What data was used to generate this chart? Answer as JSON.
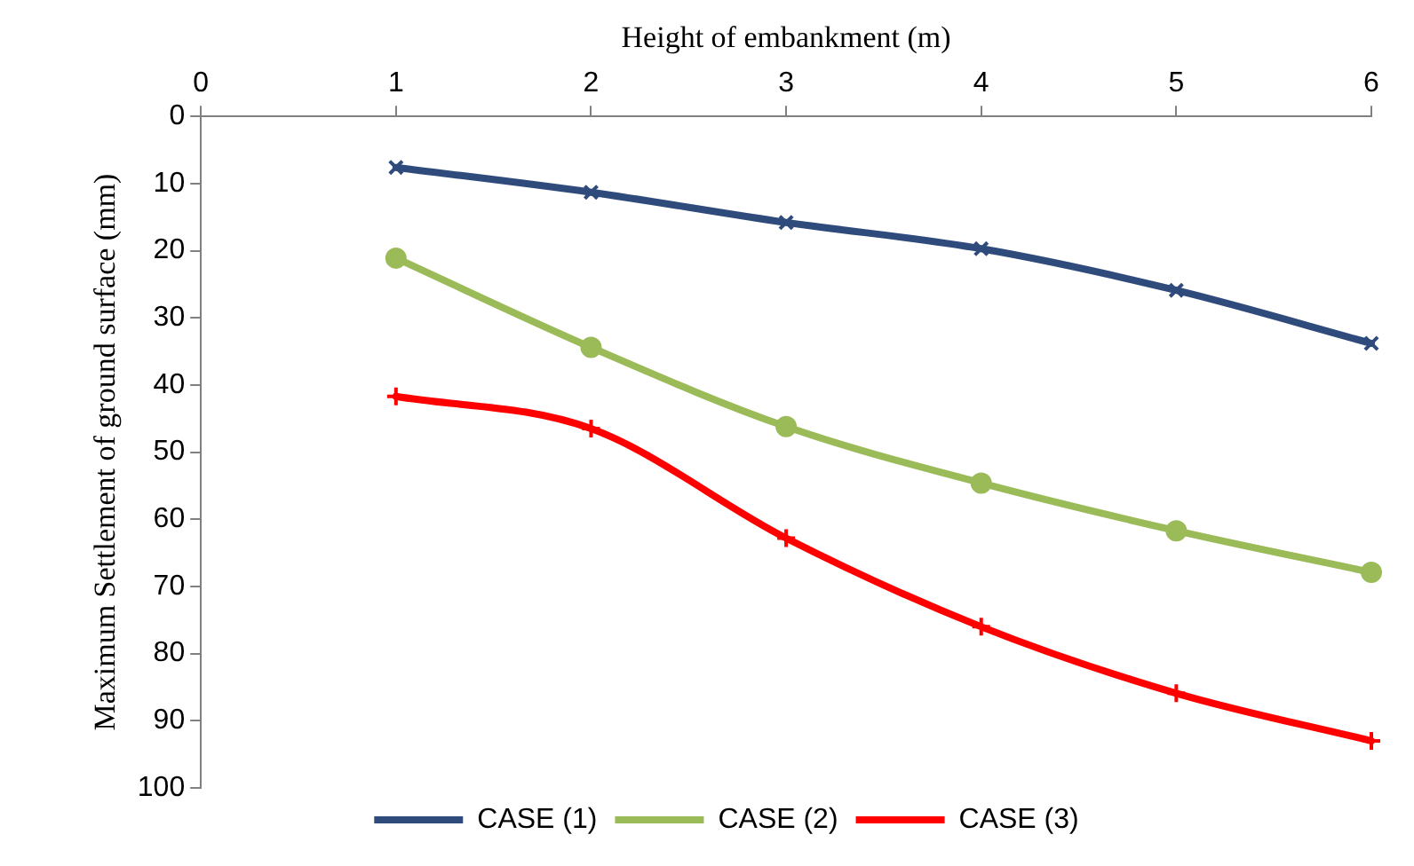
{
  "chart_data": {
    "type": "line",
    "xlabel": "Height of embankment (m)",
    "ylabel": "Maximum Settlement of ground surface (mm)",
    "x": [
      1,
      2,
      3,
      4,
      5,
      6
    ],
    "series": [
      {
        "name": "CASE (1)",
        "color": "#2f4b7c",
        "marker": "cross",
        "values": [
          7.6,
          11.3,
          15.8,
          19.7,
          25.9,
          33.8
        ]
      },
      {
        "name": "CASE (2)",
        "color": "#9bbb59",
        "marker": "circle",
        "values": [
          21.1,
          34.4,
          46.2,
          54.6,
          61.7,
          67.9
        ]
      },
      {
        "name": "CASE (3)",
        "color": "#ff0000",
        "marker": "plus",
        "values": [
          41.7,
          46.5,
          62.8,
          76,
          85.9,
          93
        ]
      }
    ],
    "xlim": [
      0,
      6
    ],
    "xticks": [
      0,
      1,
      2,
      3,
      4,
      5,
      6
    ],
    "ylim": [
      100,
      0
    ],
    "yticks": [
      0,
      10,
      20,
      30,
      40,
      50,
      60,
      70,
      80,
      90,
      100
    ],
    "grid": false,
    "legend": "bottom"
  }
}
